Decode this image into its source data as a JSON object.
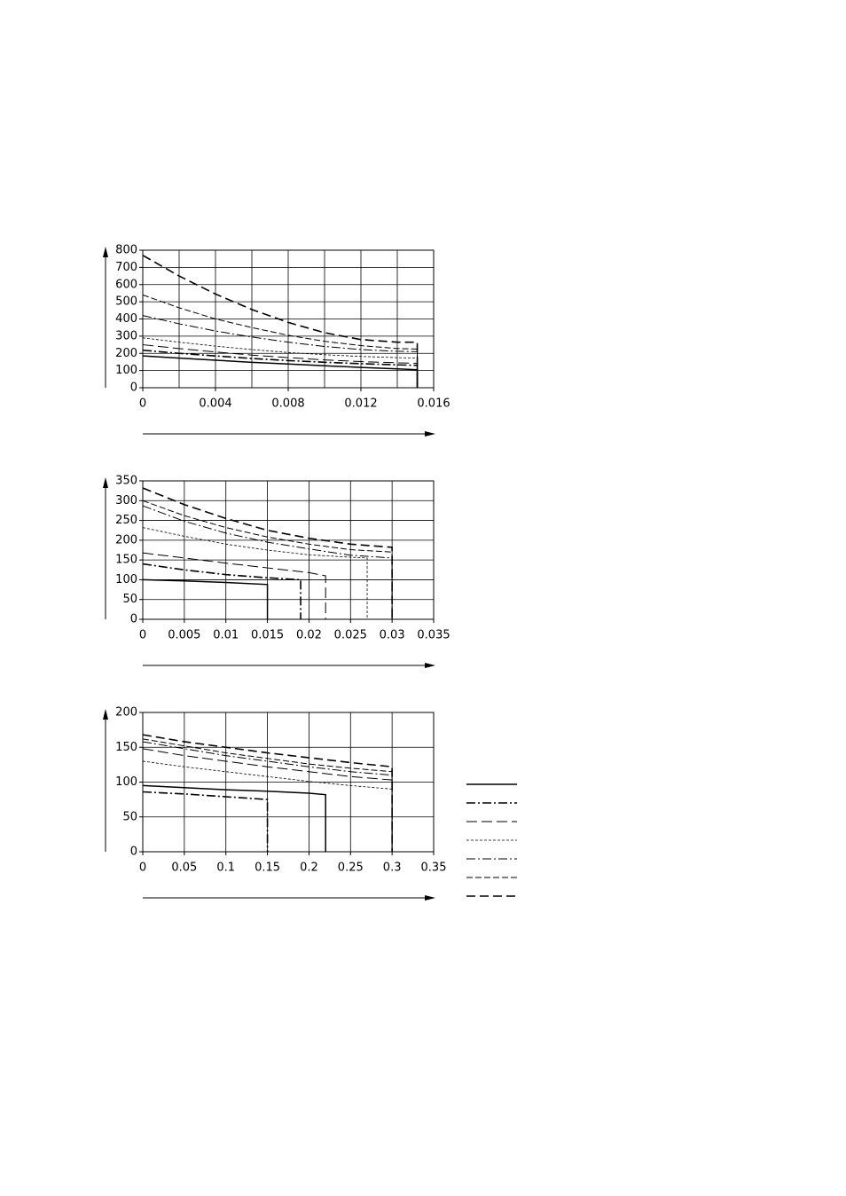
{
  "chart_data": [
    {
      "type": "line",
      "xlim": [
        0,
        0.016
      ],
      "ylim": [
        0,
        800
      ],
      "xticks": [
        0,
        0.004,
        0.008,
        0.012,
        0.016
      ],
      "xgrid": [
        0,
        0.002,
        0.004,
        0.006,
        0.008,
        0.01,
        0.012,
        0.014,
        0.016
      ],
      "yticks": [
        0,
        100,
        200,
        300,
        400,
        500,
        600,
        700,
        800
      ],
      "grid": true,
      "series": [
        {
          "color": "#000",
          "width": 1.5,
          "dash": "",
          "x": [
            0,
            0.002,
            0.004,
            0.006,
            0.008,
            0.01,
            0.012,
            0.014,
            0.0151,
            0.0151
          ],
          "values": [
            185,
            172,
            160,
            148,
            138,
            128,
            118,
            110,
            105,
            0
          ]
        },
        {
          "color": "#000",
          "width": 1.6,
          "dash": "10 3 2 3",
          "x": [
            0,
            0.002,
            0.004,
            0.006,
            0.008,
            0.01,
            0.012,
            0.014,
            0.0151,
            0.0151
          ],
          "values": [
            218,
            200,
            185,
            170,
            158,
            148,
            140,
            133,
            130,
            0
          ]
        },
        {
          "color": "#000",
          "width": 1,
          "dash": "12 5",
          "x": [
            0,
            0.002,
            0.004,
            0.006,
            0.008,
            0.01,
            0.012,
            0.014,
            0.0151,
            0.0151
          ],
          "values": [
            250,
            228,
            208,
            190,
            175,
            162,
            152,
            145,
            142,
            0
          ]
        },
        {
          "color": "#000",
          "width": 0.8,
          "dash": "3 2",
          "x": [
            0,
            0.002,
            0.004,
            0.006,
            0.008,
            0.01,
            0.012,
            0.014,
            0.0151,
            0.0151
          ],
          "values": [
            290,
            265,
            242,
            222,
            205,
            192,
            182,
            175,
            172,
            0
          ]
        },
        {
          "color": "#000",
          "width": 1,
          "dash": "10 3 2 3",
          "x": [
            0,
            0.002,
            0.004,
            0.006,
            0.008,
            0.01,
            0.012,
            0.014,
            0.0151,
            0.0151
          ],
          "values": [
            420,
            372,
            330,
            295,
            265,
            240,
            222,
            212,
            210,
            0
          ]
        },
        {
          "color": "#000",
          "width": 1,
          "dash": "7 3",
          "x": [
            0,
            0.002,
            0.004,
            0.006,
            0.008,
            0.01,
            0.012,
            0.014,
            0.0151,
            0.0151
          ],
          "values": [
            540,
            465,
            400,
            350,
            305,
            270,
            245,
            228,
            225,
            0
          ]
        },
        {
          "color": "#000",
          "width": 1.6,
          "dash": "10 5",
          "x": [
            0,
            0.002,
            0.004,
            0.006,
            0.008,
            0.01,
            0.012,
            0.014,
            0.0151,
            0.0151
          ],
          "values": [
            770,
            650,
            545,
            455,
            380,
            320,
            280,
            265,
            265,
            0
          ]
        }
      ]
    },
    {
      "type": "line",
      "xlim": [
        0,
        0.035
      ],
      "ylim": [
        0,
        350
      ],
      "xticks": [
        0,
        0.005,
        0.01,
        0.015,
        0.02,
        0.025,
        0.03,
        0.035
      ],
      "yticks": [
        0,
        50,
        100,
        150,
        200,
        250,
        300,
        350
      ],
      "grid": true,
      "series": [
        {
          "color": "#000",
          "width": 1.5,
          "dash": "",
          "x": [
            0,
            0.005,
            0.01,
            0.015,
            0.015
          ],
          "values": [
            100,
            97,
            93,
            88,
            0
          ]
        },
        {
          "color": "#000",
          "width": 1.6,
          "dash": "10 3 2 3",
          "x": [
            0,
            0.005,
            0.01,
            0.015,
            0.019,
            0.019
          ],
          "values": [
            140,
            125,
            113,
            105,
            100,
            0
          ]
        },
        {
          "color": "#000",
          "width": 1,
          "dash": "12 5",
          "x": [
            0,
            0.005,
            0.01,
            0.015,
            0.02,
            0.022,
            0.022
          ],
          "values": [
            168,
            155,
            142,
            130,
            118,
            110,
            0
          ]
        },
        {
          "color": "#000",
          "width": 0.8,
          "dash": "3 2",
          "x": [
            0,
            0.005,
            0.01,
            0.015,
            0.02,
            0.025,
            0.027,
            0.027
          ],
          "values": [
            232,
            210,
            190,
            175,
            163,
            157,
            155,
            0
          ]
        },
        {
          "color": "#000",
          "width": 1,
          "dash": "10 3 2 3",
          "x": [
            0,
            0.005,
            0.01,
            0.015,
            0.02,
            0.025,
            0.03,
            0.03
          ],
          "values": [
            287,
            248,
            218,
            195,
            178,
            162,
            155,
            0
          ]
        },
        {
          "color": "#000",
          "width": 1,
          "dash": "7 3",
          "x": [
            0,
            0.005,
            0.01,
            0.015,
            0.02,
            0.025,
            0.03,
            0.03
          ],
          "values": [
            300,
            262,
            232,
            208,
            190,
            176,
            170,
            0
          ]
        },
        {
          "color": "#000",
          "width": 1.6,
          "dash": "10 5",
          "x": [
            0,
            0.005,
            0.01,
            0.015,
            0.02,
            0.025,
            0.03,
            0.03
          ],
          "values": [
            332,
            290,
            255,
            225,
            205,
            190,
            182,
            0
          ]
        }
      ]
    },
    {
      "type": "line",
      "xlim": [
        0,
        0.35
      ],
      "ylim": [
        0,
        200
      ],
      "xticks": [
        0,
        0.05,
        0.1,
        0.15,
        0.2,
        0.25,
        0.3,
        0.35
      ],
      "yticks": [
        0,
        50,
        100,
        150,
        200
      ],
      "grid": true,
      "legend": "right",
      "series": [
        {
          "color": "#000",
          "width": 1.5,
          "dash": "",
          "x": [
            0,
            0.05,
            0.1,
            0.15,
            0.2,
            0.22,
            0.22
          ],
          "values": [
            95,
            92,
            89,
            87,
            84,
            82,
            0
          ]
        },
        {
          "color": "#000",
          "width": 1.6,
          "dash": "10 3 2 3",
          "x": [
            0,
            0.05,
            0.1,
            0.15,
            0.15
          ],
          "values": [
            86,
            83,
            79,
            75,
            0
          ]
        },
        {
          "color": "#000",
          "width": 1,
          "dash": "12 5",
          "x": [
            0,
            0.05,
            0.1,
            0.15,
            0.2,
            0.25,
            0.3,
            0.3
          ],
          "values": [
            148,
            138,
            130,
            122,
            115,
            108,
            103,
            0
          ]
        },
        {
          "color": "#000",
          "width": 0.8,
          "dash": "3 2",
          "x": [
            0,
            0.05,
            0.1,
            0.15,
            0.2,
            0.25,
            0.3,
            0.3
          ],
          "values": [
            130,
            122,
            115,
            108,
            101,
            95,
            90,
            0
          ]
        },
        {
          "color": "#000",
          "width": 1,
          "dash": "10 3 2 3",
          "x": [
            0,
            0.05,
            0.1,
            0.15,
            0.2,
            0.25,
            0.3,
            0.3
          ],
          "values": [
            158,
            148,
            138,
            130,
            122,
            115,
            110,
            0
          ]
        },
        {
          "color": "#000",
          "width": 1,
          "dash": "7 3",
          "x": [
            0,
            0.05,
            0.1,
            0.15,
            0.2,
            0.25,
            0.3,
            0.3
          ],
          "values": [
            162,
            152,
            142,
            134,
            126,
            120,
            115,
            0
          ]
        },
        {
          "color": "#000",
          "width": 1.6,
          "dash": "10 5",
          "x": [
            0,
            0.05,
            0.1,
            0.15,
            0.2,
            0.25,
            0.3,
            0.3
          ],
          "values": [
            168,
            158,
            150,
            142,
            135,
            128,
            122,
            0
          ]
        }
      ]
    }
  ]
}
